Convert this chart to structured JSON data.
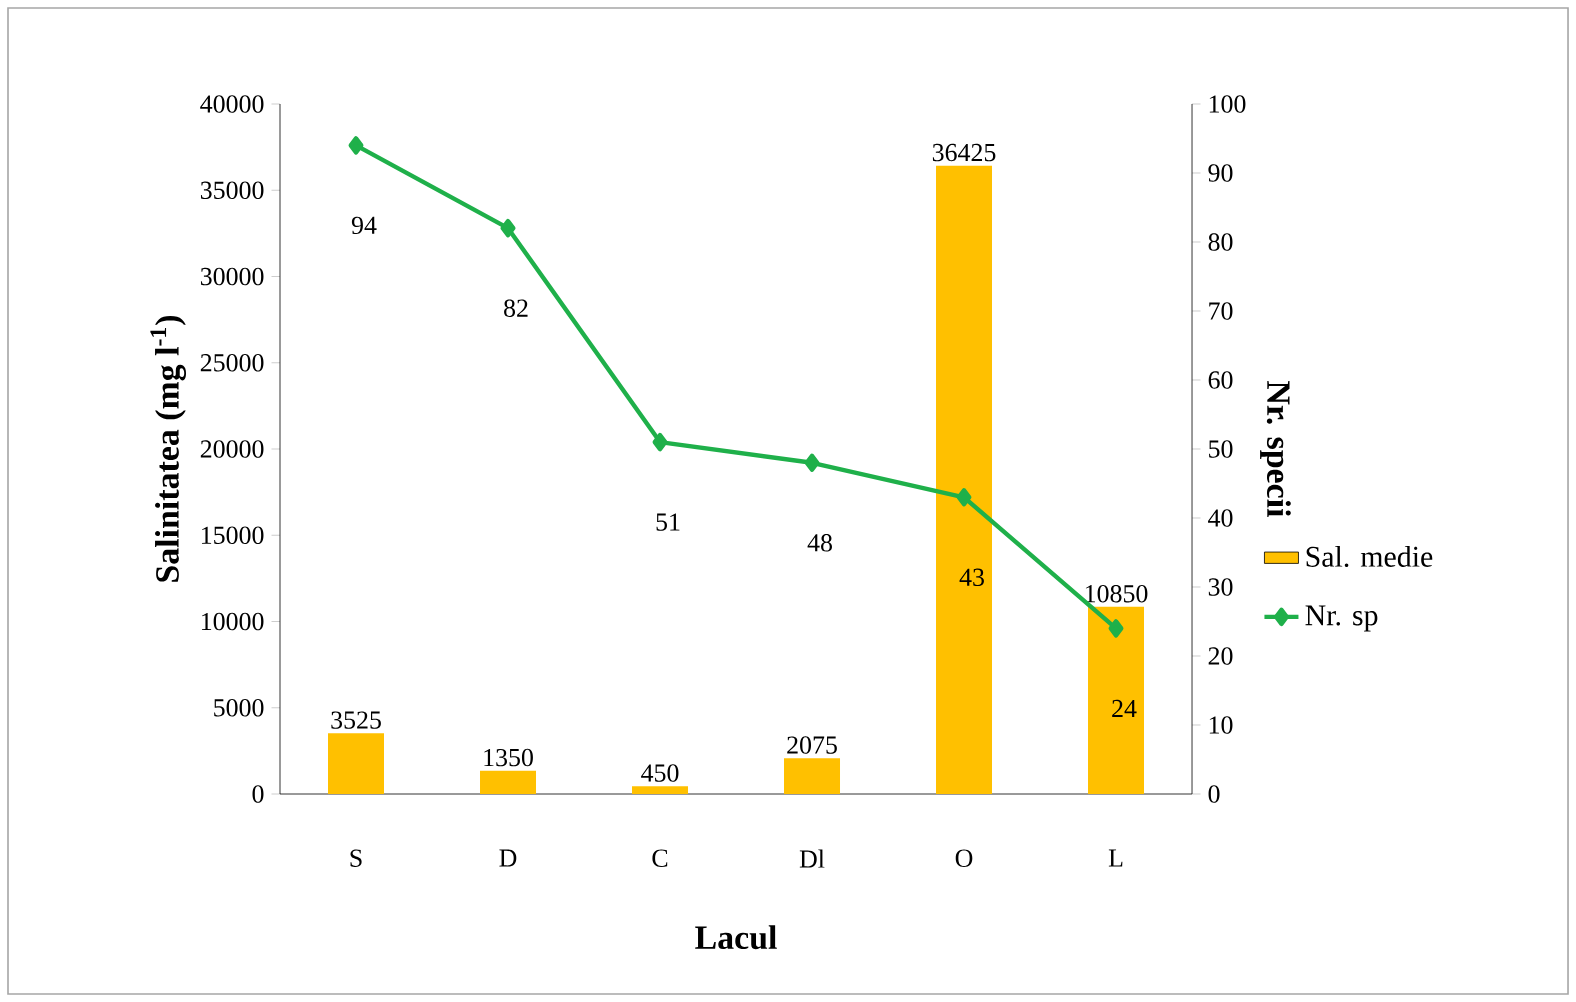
{
  "chart_data": {
    "type": "bar",
    "categories": [
      "S",
      "D",
      "C",
      "Dl",
      "O",
      "L"
    ],
    "xlabel": "Lacul",
    "ylabel": "Salinitatea (mg l$^{-1}$)",
    "y2label": "Nr. specii",
    "series": [
      {
        "name": "Sal. medie",
        "color": "#ffc000",
        "values": [
          3525,
          1350,
          450,
          2075,
          36425,
          10850
        ]
      },
      {
        "name": "Nr. sp",
        "type": "line",
        "axis": "y2",
        "color": "#1fb04a",
        "marker": "diamond",
        "line_style": "solid",
        "values": [
          94,
          82,
          51,
          48,
          43,
          24
        ]
      }
    ],
    "ylim": [
      0,
      40000
    ],
    "yticks": [
      0,
      5000,
      10000,
      15000,
      20000,
      25000,
      30000,
      35000,
      40000
    ],
    "y2lim": [
      0,
      100
    ],
    "y2ticks": [
      0,
      10,
      20,
      30,
      40,
      50,
      60,
      70,
      80,
      90,
      100
    ],
    "data_labels": true,
    "legend": "right",
    "grid": false
  }
}
